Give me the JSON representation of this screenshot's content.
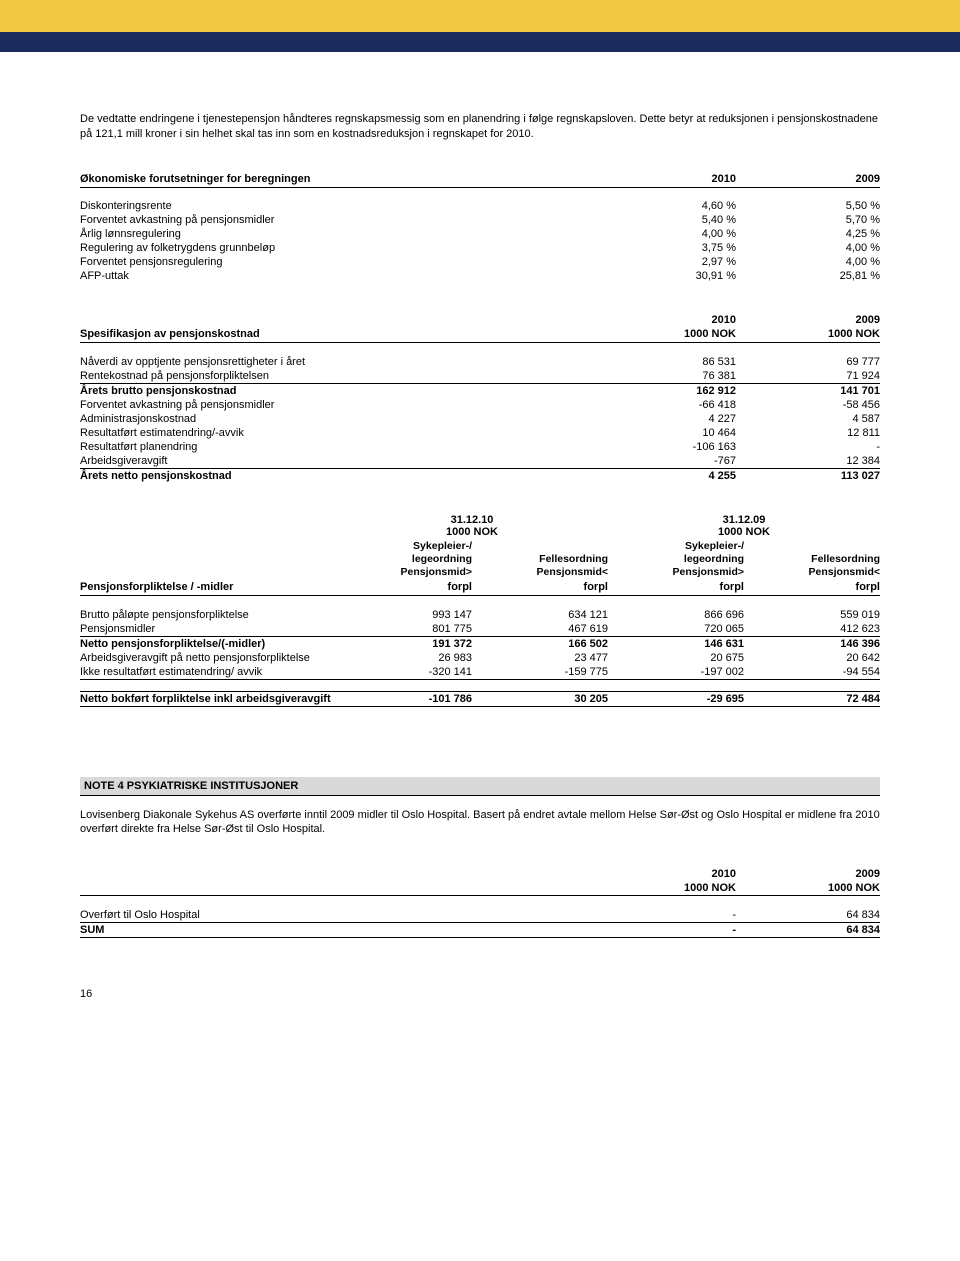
{
  "colors": {
    "yellow": "#f3c843",
    "navy": "#1a2b5c",
    "grey": "#d9d9d9",
    "text": "#000000",
    "bg": "#ffffff"
  },
  "intro": "De vedtatte endringene i tjenestepensjon håndteres regnskapsmessig som en planendring i følge regnskapsloven. Dette betyr at reduksjonen i pensjonskostnadene på 121,1 mill kroner i sin helhet skal tas inn som en kostnadsreduksjon i regnskapet for 2010.",
  "assumptions": {
    "title": "Økonomiske forutsetninger for beregningen",
    "years": [
      "2010",
      "2009"
    ],
    "rows": [
      {
        "label": "Diskonteringsrente",
        "v1": "4,60 %",
        "v2": "5,50 %"
      },
      {
        "label": "Forventet avkastning på pensjonsmidler",
        "v1": "5,40 %",
        "v2": "5,70 %"
      },
      {
        "label": "Årlig lønnsregulering",
        "v1": "4,00 %",
        "v2": "4,25 %"
      },
      {
        "label": "Regulering av folketrygdens grunnbeløp",
        "v1": "3,75 %",
        "v2": "4,00 %"
      },
      {
        "label": "Forventet pensjonsregulering",
        "v1": "2,97 %",
        "v2": "4,00 %"
      },
      {
        "label": "AFP-uttak",
        "v1": "30,91 %",
        "v2": "25,81 %"
      }
    ]
  },
  "spec": {
    "title": "Spesifikasjon av pensjonskostnad",
    "h1a": "2010",
    "h1b": "2009",
    "h2a": "1000 NOK",
    "h2b": "1000 NOK",
    "rows": [
      {
        "label": "Nåverdi av opptjente pensjonsrettigheter i året",
        "v1": "86 531",
        "v2": "69 777"
      },
      {
        "label": "Rentekostnad på pensjonsforpliktelsen",
        "v1": "76 381",
        "v2": "71 924"
      }
    ],
    "brutto": {
      "label": "Årets brutto pensjonskostnad",
      "v1": "162 912",
      "v2": "141 701"
    },
    "rows2": [
      {
        "label": "Forventet avkastning på pensjonsmidler",
        "v1": "-66 418",
        "v2": "-58 456"
      },
      {
        "label": "Administrasjonskostnad",
        "v1": "4 227",
        "v2": "4 587"
      },
      {
        "label": "Resultatført estimatendring/-avvik",
        "v1": "10 464",
        "v2": "12 811"
      },
      {
        "label": "Resultatført planendring",
        "v1": "-106 163",
        "v2": "-"
      },
      {
        "label": "Arbeidsgiveravgift",
        "v1": "-767",
        "v2": "12 384"
      }
    ],
    "netto": {
      "label": "Årets netto pensjonskostnad",
      "v1": "4 255",
      "v2": "113 027"
    }
  },
  "oblig": {
    "title": "Pensjonsforpliktelse / -midler",
    "date1": "31.12.10",
    "date2": "31.12.09",
    "unit": "1000 NOK",
    "colA1": "Sykepleier-/",
    "colA2": "legeordning",
    "colA3": "Pensjonsmid>",
    "colA4": "forpl",
    "colB1": "",
    "colB2": "Fellesordning",
    "colB3": "Pensjonsmid<",
    "colB4": "forpl",
    "rows": [
      {
        "label": "Brutto påløpte pensjonsforpliktelse",
        "a1": "993 147",
        "a2": "634 121",
        "b1": "866 696",
        "b2": "559 019"
      },
      {
        "label": "Pensjonsmidler",
        "a1": "801 775",
        "a2": "467 619",
        "b1": "720 065",
        "b2": "412 623"
      }
    ],
    "netto": {
      "label": "Netto pensjonsforpliktelse/(-midler)",
      "a1": "191 372",
      "a2": "166 502",
      "b1": "146 631",
      "b2": "146 396"
    },
    "rows2": [
      {
        "label": "Arbeidsgiveravgift på netto pensjonsforpliktelse",
        "a1": "26 983",
        "a2": "23 477",
        "b1": "20 675",
        "b2": "20 642"
      },
      {
        "label": "Ikke resultatført estimatendring/ avvik",
        "a1": "-320 141",
        "a2": "-159 775",
        "b1": "-197 002",
        "b2": "-94 554"
      }
    ],
    "bokf": {
      "label": "Netto bokført forpliktelse inkl arbeidsgiveravgift",
      "a1": "-101 786",
      "a2": "30 205",
      "b1": "-29 695",
      "b2": "72 484"
    }
  },
  "note4": {
    "title": "NOTE 4 PSYKIATRISKE INSTITUSJONER",
    "text": "Lovisenberg Diakonale Sykehus AS overførte inntil 2009 midler til Oslo Hospital. Basert på endret avtale mellom Helse Sør-Øst og Oslo Hospital er midlene fra 2010 overført direkte fra Helse Sør-Øst til Oslo Hospital.",
    "h1a": "2010",
    "h1b": "2009",
    "h2a": "1000 NOK",
    "h2b": "1000 NOK",
    "row": {
      "label": "Overført til Oslo Hospital",
      "v1": "-",
      "v2": "64 834"
    },
    "sum": {
      "label": "SUM",
      "v1": "-",
      "v2": "64 834"
    }
  },
  "pageNum": "16"
}
